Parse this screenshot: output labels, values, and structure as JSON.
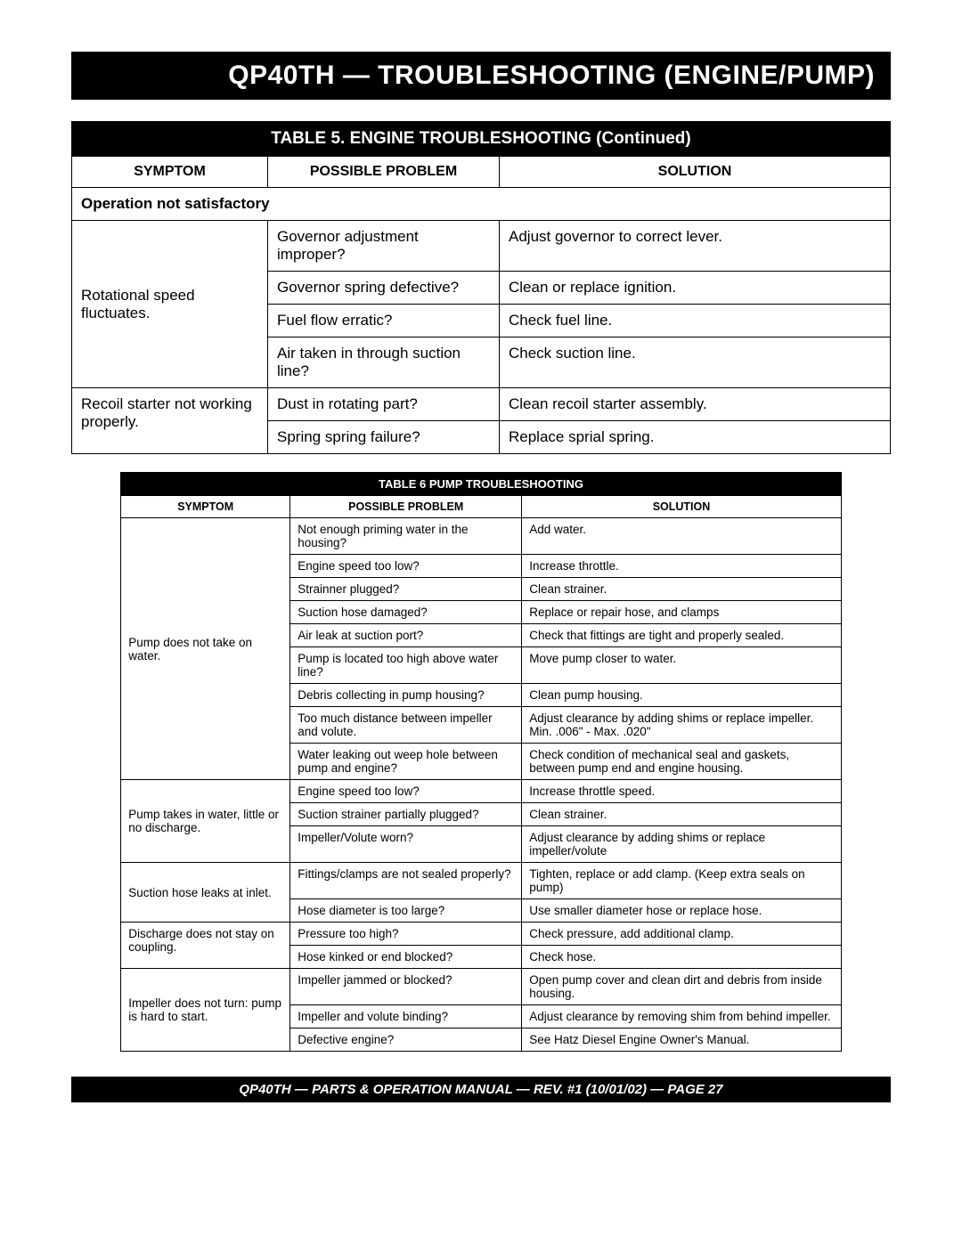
{
  "banner": "QP40TH — TROUBLESHOOTING (ENGINE/PUMP)",
  "table5": {
    "title": "TABLE 5.  ENGINE TROUBLESHOOTING (Continued)",
    "headers": {
      "symptom": "SYMPTOM",
      "problem": "POSSIBLE PROBLEM",
      "solution": "SOLUTION"
    },
    "subhead": "Operation not satisfactory",
    "groups": [
      {
        "symptom": "Rotational speed fluctuates.",
        "rows": [
          {
            "problem": "Governor adjustment improper?",
            "solution": "Adjust governor to correct lever."
          },
          {
            "problem": "Governor spring defective?",
            "solution": "Clean or replace ignition."
          },
          {
            "problem": "Fuel flow erratic?",
            "solution": "Check fuel line."
          },
          {
            "problem": "Air taken in through suction line?",
            "solution": "Check suction line."
          }
        ]
      },
      {
        "symptom": "Recoil starter not working properly.",
        "rows": [
          {
            "problem": "Dust in rotating part?",
            "solution": "Clean recoil starter assembly."
          },
          {
            "problem": "Spring spring failure?",
            "solution": "Replace sprial spring."
          }
        ]
      }
    ]
  },
  "table6": {
    "title": "TABLE 6 PUMP TROUBLESHOOTING",
    "headers": {
      "symptom": "SYMPTOM",
      "problem": "POSSIBLE PROBLEM",
      "solution": "SOLUTION"
    },
    "groups": [
      {
        "symptom": "Pump does not take on water.",
        "rows": [
          {
            "problem": "Not enough priming water in the housing?",
            "solution": "Add water."
          },
          {
            "problem": "Engine speed too low?",
            "solution": "Increase throttle."
          },
          {
            "problem": "Strainner plugged?",
            "solution": "Clean strainer."
          },
          {
            "problem": "Suction hose damaged?",
            "solution": "Replace or repair hose, and clamps"
          },
          {
            "problem": "Air leak at suction port?",
            "solution": "Check that fittings are tight and properly sealed."
          },
          {
            "problem": "Pump is located too high above water line?",
            "solution": "Move pump closer to water."
          },
          {
            "problem": "Debris collecting in pump housing?",
            "solution": "Clean pump housing."
          },
          {
            "problem": "Too much distance between impeller and volute.",
            "solution": "Adjust clearance by adding shims or replace impeller. Min. .006\" - Max. .020\""
          },
          {
            "problem": "Water leaking out weep hole between pump and engine?",
            "solution": "Check condition of mechanical seal and gaskets, between pump end and engine housing."
          }
        ]
      },
      {
        "symptom": "Pump takes in water, little or no discharge.",
        "rows": [
          {
            "problem": "Engine speed too low?",
            "solution": "Increase throttle speed."
          },
          {
            "problem": "Suction strainer partially plugged?",
            "solution": "Clean strainer."
          },
          {
            "problem": "Impeller/Volute worn?",
            "solution": "Adjust clearance by adding shims or replace impeller/volute"
          }
        ]
      },
      {
        "symptom": "Suction hose leaks at inlet.",
        "rows": [
          {
            "problem": "Fittings/clamps are not sealed properly?",
            "solution": "Tighten, replace or add clamp. (Keep extra seals on pump)"
          },
          {
            "problem": "Hose diameter is too large?",
            "solution": "Use smaller diameter hose or replace hose."
          }
        ]
      },
      {
        "symptom": "Discharge does not stay on coupling.",
        "rows": [
          {
            "problem": "Pressure too high?",
            "solution": "Check pressure, add additional clamp."
          },
          {
            "problem": "Hose kinked or end blocked?",
            "solution": "Check hose."
          }
        ]
      },
      {
        "symptom": "Impeller does not turn: pump is hard to start.",
        "rows": [
          {
            "problem": "Impeller jammed or blocked?",
            "solution": "Open pump cover and clean dirt and debris from inside housing."
          },
          {
            "problem": "Impeller and volute binding?",
            "solution": "Adjust clearance by removing shim from behind impeller."
          },
          {
            "problem": "Defective engine?",
            "solution": "See Hatz Diesel Engine Owner's Manual."
          }
        ]
      }
    ]
  },
  "footer": "QP40TH  — PARTS & OPERATION MANUAL — REV. #1 (10/01/02) — PAGE 27"
}
